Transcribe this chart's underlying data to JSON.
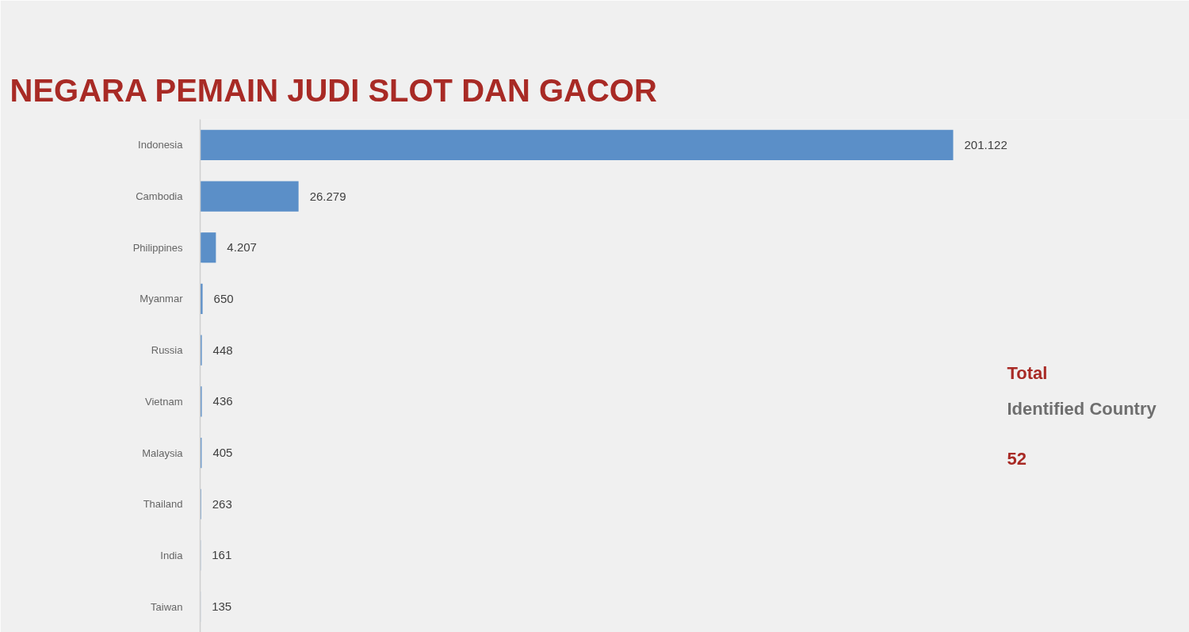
{
  "chart_data": {
    "type": "bar",
    "orientation": "horizontal",
    "title": "NEGARA PEMAIN JUDI SLOT DAN GACOR",
    "categories": [
      "Indonesia",
      "Cambodia",
      "Philippines",
      "Myanmar",
      "Russia",
      "Vietnam",
      "Malaysia",
      "Thailand",
      "India",
      "Taiwan"
    ],
    "values": [
      201122,
      26279,
      4207,
      650,
      448,
      436,
      405,
      263,
      161,
      135
    ],
    "value_labels": [
      "201.122",
      "26.279",
      "4.207",
      "650",
      "448",
      "436",
      "405",
      "263",
      "161",
      "135"
    ],
    "color": "#5b8fc8",
    "annotations": [
      "Total",
      "Identified Country",
      "52"
    ]
  }
}
